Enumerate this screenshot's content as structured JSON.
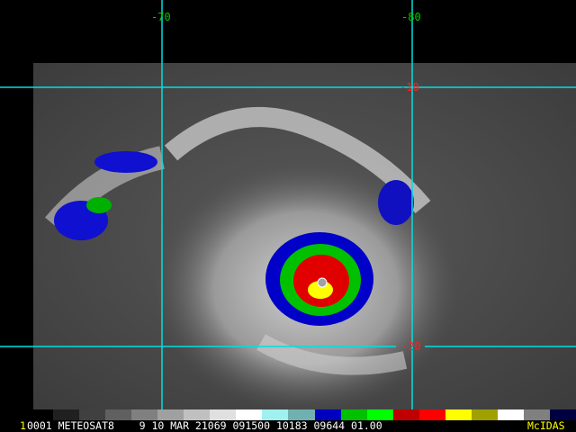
{
  "product": {
    "frame_number": "1",
    "caption": "0001 METEOSAT8    9 10 MAR 21069 091500 10183 09644 01.00",
    "brand": "McIDAS"
  },
  "grid": {
    "longitudes": [
      "-70",
      "-80"
    ],
    "latitudes": [
      "-10",
      "-20"
    ],
    "line_color": "#00e0e0",
    "lon_label_color": "#00cc00",
    "lat_label_color": "#ff2020"
  },
  "colorbar": {
    "colors": [
      "#000000",
      "#202020",
      "#404040",
      "#606060",
      "#808080",
      "#a0a0a0",
      "#c0c0c0",
      "#e0e0e0",
      "#ffffff",
      "#a0f0f0",
      "#70b0b0",
      "#0000c0",
      "#00c000",
      "#00ff00",
      "#c00000",
      "#ff0000",
      "#ffff00",
      "#a0a000",
      "#ffffff",
      "#808080",
      "#000040"
    ]
  }
}
